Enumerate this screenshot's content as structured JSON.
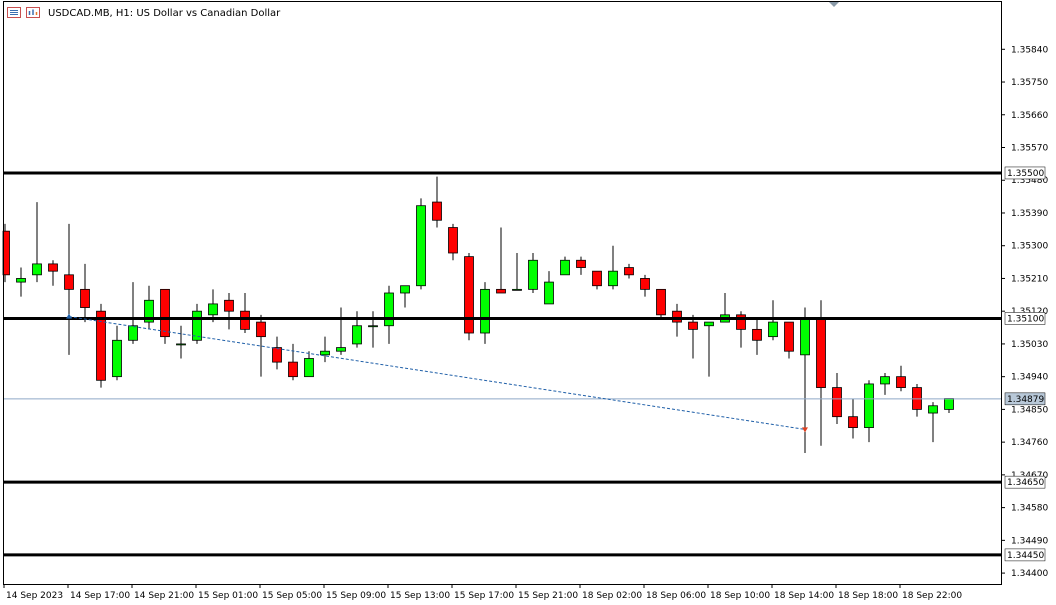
{
  "window": {
    "title": "USDCAD.MB, H1:  US Dollar vs Canadian Dollar",
    "icons": [
      "chart-window-icon",
      "bar-chart-icon"
    ]
  },
  "colors": {
    "bull": "#00ff00",
    "bear": "#ff0000",
    "wick": "#000000",
    "level_line": "#000000",
    "bid_line": "#8fa9c6",
    "trade_line": "#1f5fa8",
    "buy_arrow": "#1f5fa8",
    "sell_arrow": "#e0401f"
  },
  "chart_data": {
    "type": "candlestick",
    "title": "USDCAD.MB, H1:  US Dollar vs Canadian Dollar",
    "ylim": [
      1.3437,
      1.3597
    ],
    "y_ticks": [
      "1.35840",
      "1.35750",
      "1.35660",
      "1.35570",
      "1.35480",
      "1.35390",
      "1.35300",
      "1.35210",
      "1.35120",
      "1.35030",
      "1.34940",
      "1.34850",
      "1.34760",
      "1.34670",
      "1.34580",
      "1.34490",
      "1.34400"
    ],
    "x_labels": [
      "14 Sep 2023",
      "14 Sep 17:00",
      "14 Sep 21:00",
      "15 Sep 01:00",
      "15 Sep 05:00",
      "15 Sep 09:00",
      "15 Sep 13:00",
      "15 Sep 17:00",
      "15 Sep 21:00",
      "18 Sep 02:00",
      "18 Sep 06:00",
      "18 Sep 10:00",
      "18 Sep 14:00",
      "18 Sep 18:00",
      "18 Sep 22:00"
    ],
    "x_label_index": [
      0,
      4,
      8,
      12,
      16,
      20,
      24,
      28,
      32,
      36,
      40,
      44,
      48,
      52,
      56
    ],
    "levels": [
      {
        "label": "1.35500",
        "value": 1.355
      },
      {
        "label": "1.35100",
        "value": 1.351
      },
      {
        "label": "1.34650",
        "value": 1.3465
      },
      {
        "label": "1.34450",
        "value": 1.3445
      }
    ],
    "bid": {
      "label": "1.34879",
      "value": 1.34879
    },
    "trade_line": {
      "from": {
        "index": 4,
        "price": 1.35105
      },
      "to": {
        "index": 50,
        "price": 1.34795
      }
    },
    "candles": [
      {
        "o": 1.3534,
        "h": 1.3536,
        "l": 1.352,
        "c": 1.3522
      },
      {
        "o": 1.352,
        "h": 1.3524,
        "l": 1.3516,
        "c": 1.3521
      },
      {
        "o": 1.3522,
        "h": 1.3542,
        "l": 1.352,
        "c": 1.3525
      },
      {
        "o": 1.3525,
        "h": 1.3526,
        "l": 1.3519,
        "c": 1.3523
      },
      {
        "o": 1.3522,
        "h": 1.3536,
        "l": 1.35,
        "c": 1.3518
      },
      {
        "o": 1.3518,
        "h": 1.3525,
        "l": 1.3509,
        "c": 1.3513
      },
      {
        "o": 1.3512,
        "h": 1.3514,
        "l": 1.3491,
        "c": 1.3493
      },
      {
        "o": 1.3494,
        "h": 1.3508,
        "l": 1.3493,
        "c": 1.3504
      },
      {
        "o": 1.3504,
        "h": 1.352,
        "l": 1.3503,
        "c": 1.3508
      },
      {
        "o": 1.3509,
        "h": 1.3519,
        "l": 1.3507,
        "c": 1.3515
      },
      {
        "o": 1.3518,
        "h": 1.3518,
        "l": 1.3503,
        "c": 1.3505
      },
      {
        "o": 1.3503,
        "h": 1.3508,
        "l": 1.3499,
        "c": 1.3503
      },
      {
        "o": 1.3504,
        "h": 1.3514,
        "l": 1.3503,
        "c": 1.3512
      },
      {
        "o": 1.3511,
        "h": 1.3518,
        "l": 1.3509,
        "c": 1.3514
      },
      {
        "o": 1.3515,
        "h": 1.3517,
        "l": 1.3507,
        "c": 1.3512
      },
      {
        "o": 1.3512,
        "h": 1.3517,
        "l": 1.3506,
        "c": 1.3507
      },
      {
        "o": 1.3509,
        "h": 1.3511,
        "l": 1.3494,
        "c": 1.3505
      },
      {
        "o": 1.3502,
        "h": 1.3505,
        "l": 1.3496,
        "c": 1.3498
      },
      {
        "o": 1.3498,
        "h": 1.3503,
        "l": 1.3493,
        "c": 1.3494
      },
      {
        "o": 1.3494,
        "h": 1.3501,
        "l": 1.3494,
        "c": 1.3499
      },
      {
        "o": 1.35,
        "h": 1.3505,
        "l": 1.3498,
        "c": 1.3501
      },
      {
        "o": 1.3501,
        "h": 1.3513,
        "l": 1.35,
        "c": 1.3502
      },
      {
        "o": 1.3503,
        "h": 1.3512,
        "l": 1.3502,
        "c": 1.3508
      },
      {
        "o": 1.3508,
        "h": 1.3512,
        "l": 1.3502,
        "c": 1.3508
      },
      {
        "o": 1.3508,
        "h": 1.3519,
        "l": 1.3503,
        "c": 1.3517
      },
      {
        "o": 1.3517,
        "h": 1.3519,
        "l": 1.3513,
        "c": 1.3519
      },
      {
        "o": 1.3519,
        "h": 1.3543,
        "l": 1.3518,
        "c": 1.3541
      },
      {
        "o": 1.3542,
        "h": 1.3549,
        "l": 1.3535,
        "c": 1.3537
      },
      {
        "o": 1.3535,
        "h": 1.3536,
        "l": 1.3526,
        "c": 1.3528
      },
      {
        "o": 1.3527,
        "h": 1.3528,
        "l": 1.3504,
        "c": 1.3506
      },
      {
        "o": 1.3506,
        "h": 1.352,
        "l": 1.3503,
        "c": 1.3518
      },
      {
        "o": 1.3518,
        "h": 1.3535,
        "l": 1.3517,
        "c": 1.3517
      },
      {
        "o": 1.3518,
        "h": 1.3528,
        "l": 1.3518,
        "c": 1.3518
      },
      {
        "o": 1.3518,
        "h": 1.3528,
        "l": 1.3517,
        "c": 1.3526
      },
      {
        "o": 1.3514,
        "h": 1.3523,
        "l": 1.3514,
        "c": 1.352
      },
      {
        "o": 1.3522,
        "h": 1.3527,
        "l": 1.3522,
        "c": 1.3526
      },
      {
        "o": 1.3526,
        "h": 1.3527,
        "l": 1.3522,
        "c": 1.3524
      },
      {
        "o": 1.3523,
        "h": 1.3523,
        "l": 1.3518,
        "c": 1.3519
      },
      {
        "o": 1.3519,
        "h": 1.353,
        "l": 1.3518,
        "c": 1.3523
      },
      {
        "o": 1.3524,
        "h": 1.3525,
        "l": 1.3521,
        "c": 1.3522
      },
      {
        "o": 1.3521,
        "h": 1.3522,
        "l": 1.3516,
        "c": 1.3518
      },
      {
        "o": 1.3518,
        "h": 1.3518,
        "l": 1.351,
        "c": 1.3511
      },
      {
        "o": 1.3512,
        "h": 1.3514,
        "l": 1.3505,
        "c": 1.3509
      },
      {
        "o": 1.3509,
        "h": 1.3511,
        "l": 1.3499,
        "c": 1.3507
      },
      {
        "o": 1.3508,
        "h": 1.3509,
        "l": 1.3494,
        "c": 1.3509
      },
      {
        "o": 1.3509,
        "h": 1.3517,
        "l": 1.3509,
        "c": 1.3511
      },
      {
        "o": 1.3511,
        "h": 1.3512,
        "l": 1.3502,
        "c": 1.3507
      },
      {
        "o": 1.3507,
        "h": 1.351,
        "l": 1.35,
        "c": 1.3504
      },
      {
        "o": 1.3505,
        "h": 1.3515,
        "l": 1.3504,
        "c": 1.3509
      },
      {
        "o": 1.3509,
        "h": 1.3509,
        "l": 1.3499,
        "c": 1.3501
      },
      {
        "o": 1.35,
        "h": 1.3513,
        "l": 1.3473,
        "c": 1.351
      },
      {
        "o": 1.351,
        "h": 1.3515,
        "l": 1.3475,
        "c": 1.3491
      },
      {
        "o": 1.3491,
        "h": 1.3495,
        "l": 1.3481,
        "c": 1.3483
      },
      {
        "o": 1.3483,
        "h": 1.3488,
        "l": 1.3477,
        "c": 1.348
      },
      {
        "o": 1.348,
        "h": 1.3493,
        "l": 1.3476,
        "c": 1.3492
      },
      {
        "o": 1.3492,
        "h": 1.3495,
        "l": 1.3489,
        "c": 1.3494
      },
      {
        "o": 1.3494,
        "h": 1.3497,
        "l": 1.349,
        "c": 1.3491
      },
      {
        "o": 1.3491,
        "h": 1.3492,
        "l": 1.3483,
        "c": 1.3485
      },
      {
        "o": 1.3484,
        "h": 1.3487,
        "l": 1.3476,
        "c": 1.3486
      },
      {
        "o": 1.3485,
        "h": 1.3488,
        "l": 1.3484,
        "c": 1.3488
      }
    ]
  }
}
